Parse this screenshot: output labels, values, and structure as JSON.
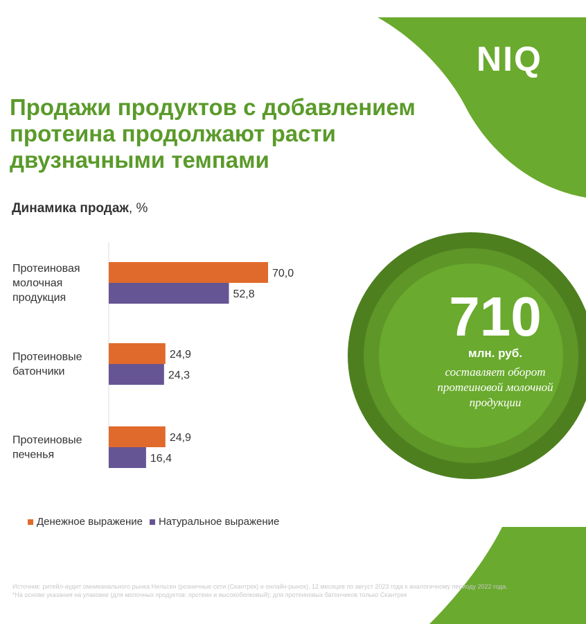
{
  "brand": {
    "logo_text": "NIQ",
    "green": "#6aaa2e",
    "dark_green": "#4a7f1e",
    "mid_green": "#5c9428"
  },
  "header": {
    "title": "Продажи продуктов с добавлением протеина продолжают расти двузначными темпами"
  },
  "chart_subtitle": {
    "bold": "Динамика продаж",
    "rest": ", %"
  },
  "chart_data": {
    "type": "bar",
    "orientation": "horizontal",
    "title": "Динамика продаж, %",
    "categories": [
      "Протеиновая молочная продукция",
      "Протеиновые батончики",
      "Протеиновые печенья"
    ],
    "category_lines": [
      [
        "Протеиновая",
        "молочная",
        "продукция"
      ],
      [
        "Протеиновые",
        "батончики"
      ],
      [
        "Протеиновые",
        "печенья"
      ]
    ],
    "series": [
      {
        "name": "Денежное выражение",
        "color": "#e06a2c",
        "values": [
          70.0,
          24.9,
          24.9
        ],
        "labels": [
          "70,0",
          "24,9",
          "24,9"
        ]
      },
      {
        "name": "Натуральное выражение",
        "color": "#665594",
        "values": [
          52.8,
          24.3,
          16.4
        ],
        "labels": [
          "52,8",
          "24,3",
          "16,4"
        ]
      }
    ],
    "xlim": [
      0,
      70
    ],
    "grid": false,
    "legend_position": "bottom"
  },
  "highlight": {
    "number": "710",
    "unit": "млн. руб.",
    "description": "составляет оборот протеиновой молочной продукции"
  },
  "footer": {
    "source_line1": "Источник: ритейл-аудит омниканального рынка Нильсен (розничные сети (Скантрек) и онлайн-рынок), 12 месяцев по август 2023 года к аналогичному периоду 2022 года.",
    "source_line2": "*На основе указания на упаковке (для молочных продуктов: протеин и высокобелковый); для протеиновых батончиков только Скантрек"
  }
}
